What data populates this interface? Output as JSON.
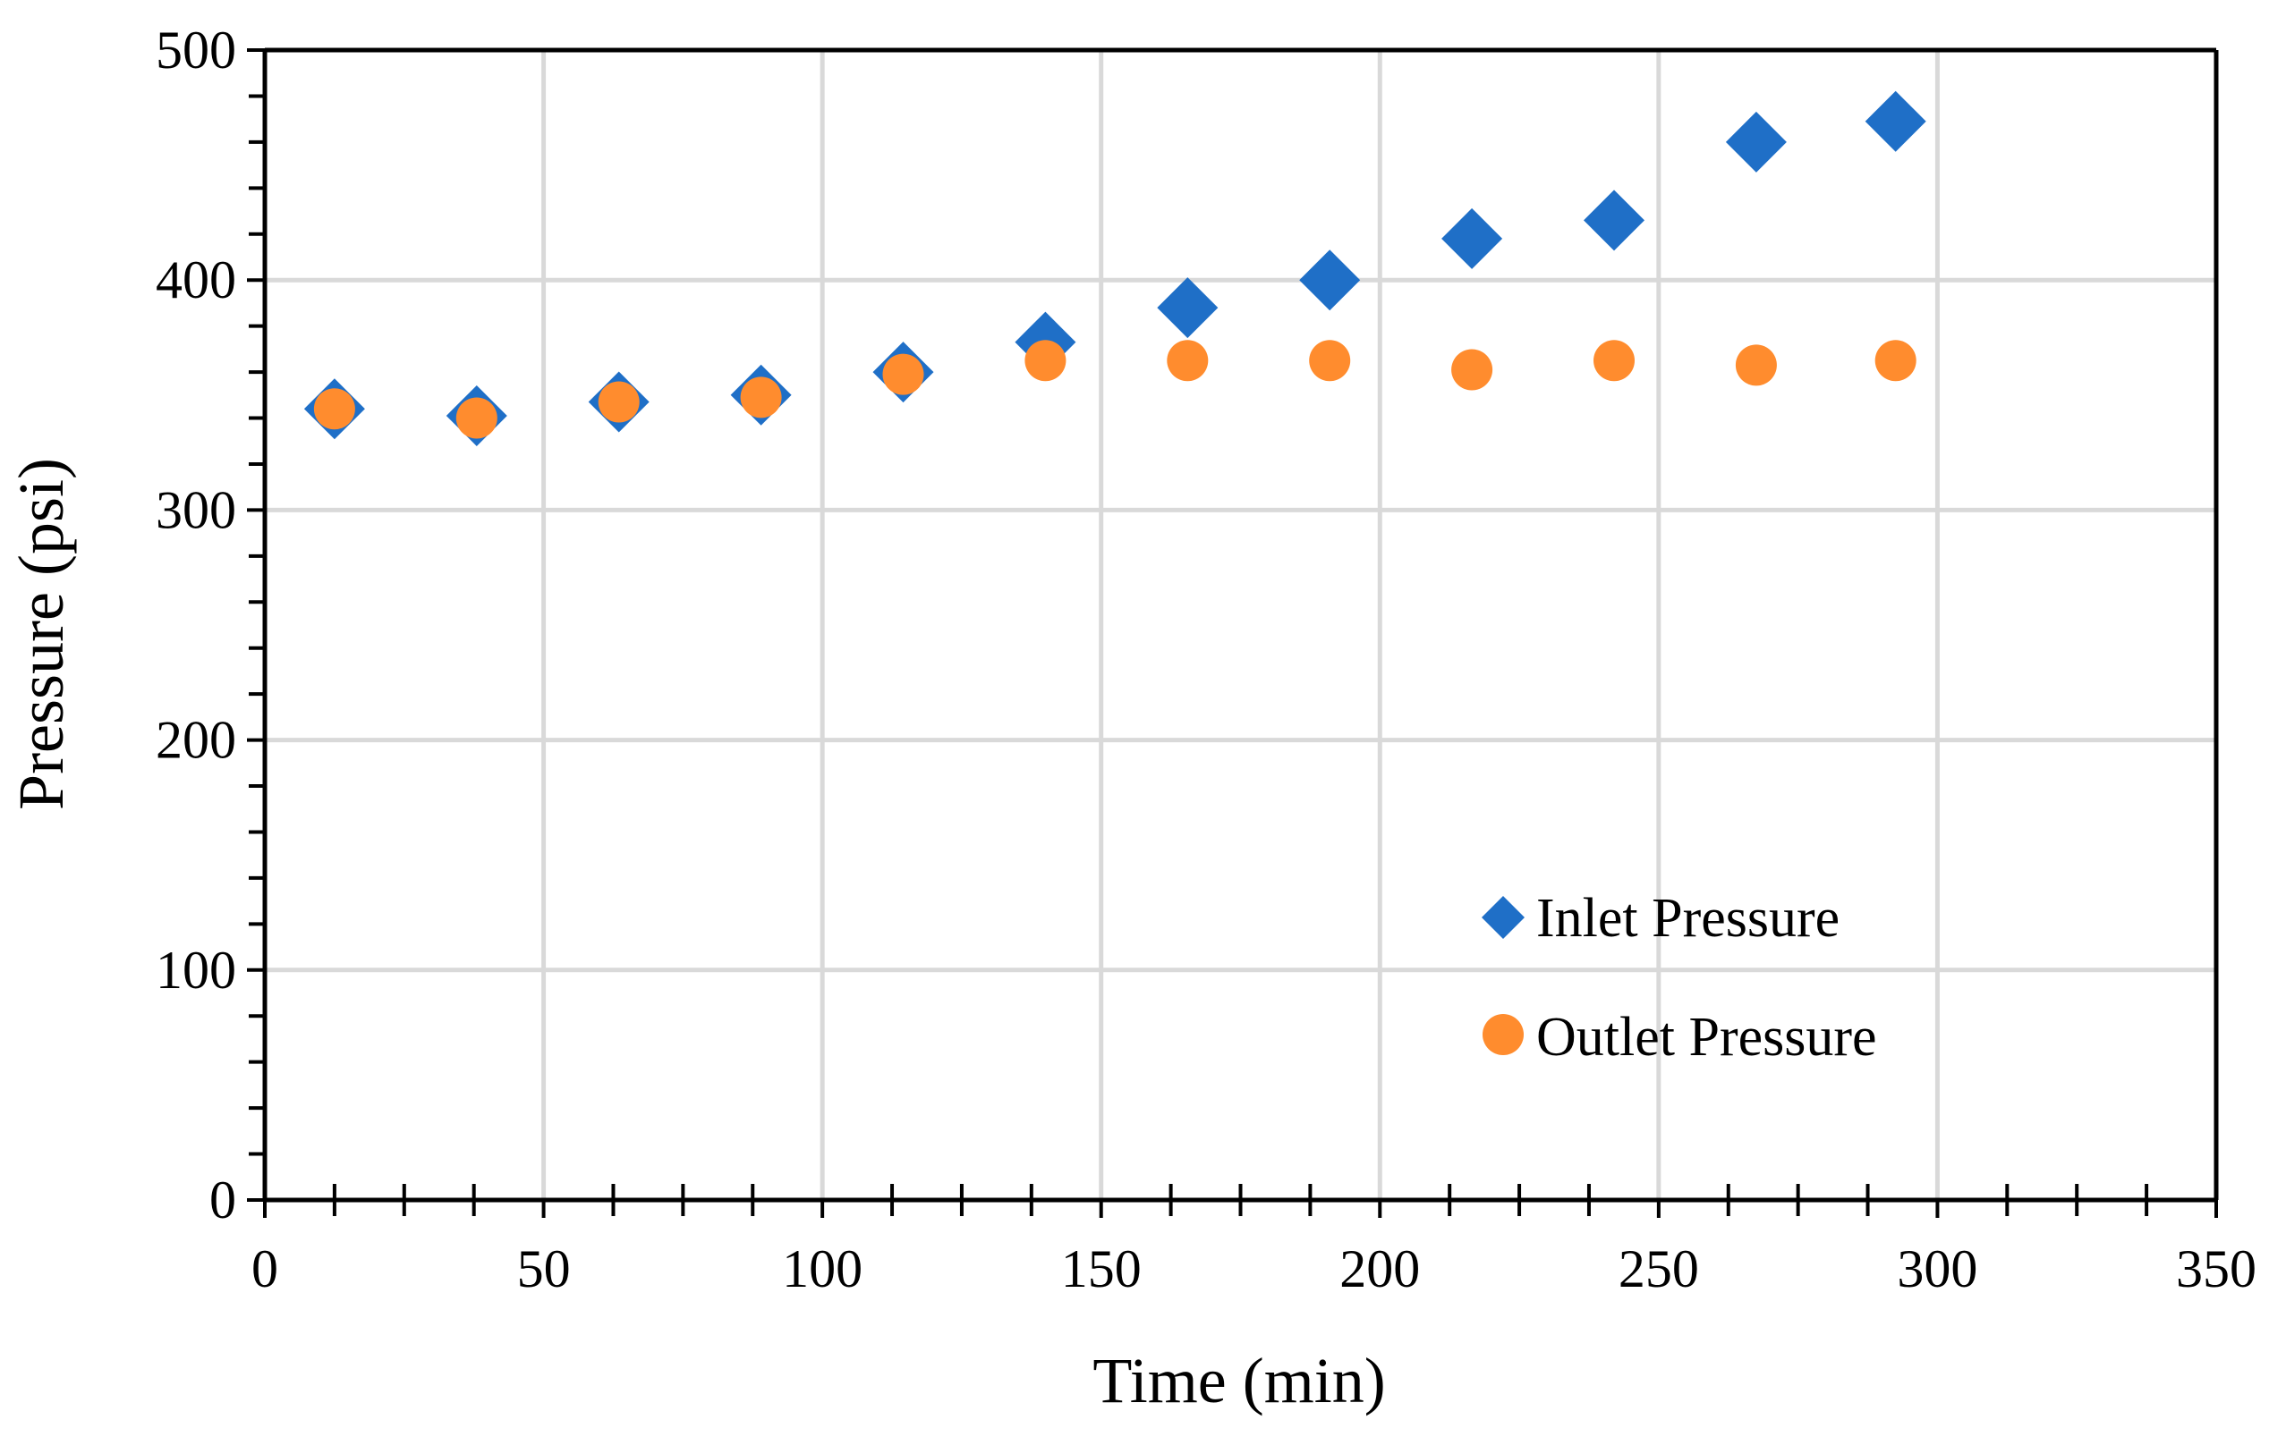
{
  "chart_data": {
    "type": "scatter",
    "title": "",
    "xlabel": "Time (min)",
    "ylabel": "Pressure (psi)",
    "xlim": [
      0,
      350
    ],
    "ylim": [
      0,
      500
    ],
    "xticks": [
      0,
      50,
      100,
      150,
      200,
      250,
      300,
      350
    ],
    "yticks": [
      0,
      100,
      200,
      300,
      400,
      500
    ],
    "xtick_labels": [
      "0",
      "50",
      "100",
      "150",
      "200",
      "250",
      "300",
      "350"
    ],
    "ytick_labels": [
      "0",
      "100",
      "200",
      "300",
      "400",
      "500"
    ],
    "grid": true,
    "legend_position": "bottom-right",
    "series": [
      {
        "name": "Inlet Pressure",
        "marker": "diamond",
        "color": "#1f6fc7",
        "points": [
          {
            "x": 12.5,
            "y": 344
          },
          {
            "x": 38,
            "y": 341
          },
          {
            "x": 63.5,
            "y": 347
          },
          {
            "x": 89,
            "y": 350
          },
          {
            "x": 114.5,
            "y": 360
          },
          {
            "x": 140,
            "y": 373
          },
          {
            "x": 165.5,
            "y": 388
          },
          {
            "x": 191,
            "y": 400
          },
          {
            "x": 216.5,
            "y": 418
          },
          {
            "x": 242,
            "y": 426
          },
          {
            "x": 267.5,
            "y": 460
          },
          {
            "x": 292.5,
            "y": 469
          }
        ]
      },
      {
        "name": "Outlet Pressure",
        "marker": "circle",
        "color": "#ff8c2e",
        "points": [
          {
            "x": 12.5,
            "y": 344
          },
          {
            "x": 38,
            "y": 340
          },
          {
            "x": 63.5,
            "y": 347
          },
          {
            "x": 89,
            "y": 349
          },
          {
            "x": 114.5,
            "y": 359
          },
          {
            "x": 140,
            "y": 365
          },
          {
            "x": 165.5,
            "y": 365
          },
          {
            "x": 191,
            "y": 365
          },
          {
            "x": 216.5,
            "y": 361
          },
          {
            "x": 242,
            "y": 365
          },
          {
            "x": 267.5,
            "y": 363
          },
          {
            "x": 292.5,
            "y": 365
          }
        ]
      }
    ]
  }
}
